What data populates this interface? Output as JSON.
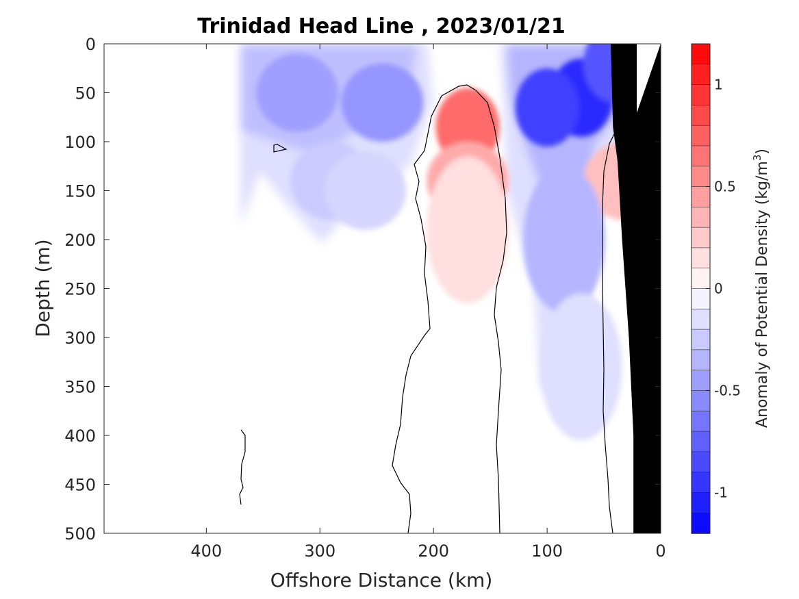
{
  "chart_data": {
    "type": "heatmap",
    "title": "Trinidad Head Line , 2023/01/21",
    "xlabel": "Offshore Distance (km)",
    "ylabel": "Depth (m)",
    "colorbar_label": "Anomaly of Potential Density (kg/m³)",
    "colorbar_label_parts": [
      "Anomaly of Potential Density (kg/m",
      "3",
      ")"
    ],
    "xlim": [
      490,
      0
    ],
    "ylim": [
      0,
      500
    ],
    "x_reversed": true,
    "y_reversed": true,
    "x_ticks": [
      400,
      300,
      200,
      100,
      0
    ],
    "y_ticks": [
      0,
      50,
      100,
      150,
      200,
      250,
      300,
      350,
      400,
      450,
      500
    ],
    "clim": [
      -1.2,
      1.2
    ],
    "colorbar_ticks": [
      1,
      0.5,
      0,
      -0.5,
      -1
    ],
    "colorbar_levels": 24,
    "colormap": {
      "negative": "#0000ff",
      "zero": "#ffffff",
      "positive": "#ff0000"
    },
    "contour_level": 0,
    "data_extent_x_km": 370,
    "bottom_depth_profile": {
      "distance_km": [
        24,
        24,
        28,
        34,
        38,
        42,
        44,
        0
      ],
      "depth_m": [
        500,
        400,
        300,
        200,
        120,
        85,
        0,
        0
      ]
    },
    "features": [
      {
        "kind": "anomaly",
        "distance_km": 170,
        "depth_m": 85,
        "value": 0.7
      },
      {
        "kind": "anomaly",
        "distance_km": 170,
        "depth_m": 140,
        "value": 0.4
      },
      {
        "kind": "anomaly",
        "distance_km": 170,
        "depth_m": 190,
        "value": 0.15
      },
      {
        "kind": "anomaly",
        "distance_km": 32,
        "depth_m": 140,
        "value": 0.3
      },
      {
        "kind": "anomaly",
        "distance_km": 70,
        "depth_m": 55,
        "value": -1.0
      },
      {
        "kind": "anomaly",
        "distance_km": 100,
        "depth_m": 65,
        "value": -0.9
      },
      {
        "kind": "anomaly",
        "distance_km": 40,
        "depth_m": 20,
        "value": -0.8
      },
      {
        "kind": "anomaly",
        "distance_km": 85,
        "depth_m": 200,
        "value": -0.35
      },
      {
        "kind": "anomaly",
        "distance_km": 70,
        "depth_m": 330,
        "value": -0.15
      },
      {
        "kind": "anomaly",
        "distance_km": 320,
        "depth_m": 50,
        "value": -0.45
      },
      {
        "kind": "anomaly",
        "distance_km": 245,
        "depth_m": 60,
        "value": -0.5
      },
      {
        "kind": "anomaly",
        "distance_km": 290,
        "depth_m": 140,
        "value": -0.25
      },
      {
        "kind": "anomaly",
        "distance_km": 260,
        "depth_m": 150,
        "value": -0.2
      }
    ]
  }
}
